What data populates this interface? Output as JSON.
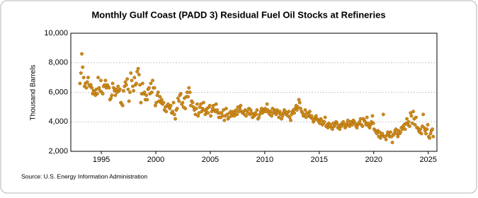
{
  "chart_data": {
    "type": "scatter",
    "title": "Monthly Gulf Coast (PADD 3) Residual Fuel Oil Stocks at Refineries",
    "ylabel": "Thousand Barrels",
    "source": "Source: U.S. Energy Information Administration",
    "color": "#d08b1a",
    "grid": true,
    "xlim": [
      1992.2,
      2025.8
    ],
    "xticks": [
      1995,
      2000,
      2005,
      2010,
      2015,
      2020,
      2025
    ],
    "ylim": [
      2000,
      10000
    ],
    "yticks": [
      {
        "value": 2000,
        "label": "2,000"
      },
      {
        "value": 4000,
        "label": "4,000"
      },
      {
        "value": 6000,
        "label": "6,000"
      },
      {
        "value": 8000,
        "label": "8,000"
      },
      {
        "value": 10000,
        "label": "10,000"
      }
    ],
    "x": [
      1993.04,
      1993.13,
      1993.21,
      1993.29,
      1993.38,
      1993.46,
      1993.54,
      1993.63,
      1993.71,
      1993.79,
      1993.88,
      1993.96,
      1994.04,
      1994.13,
      1994.21,
      1994.29,
      1994.38,
      1994.46,
      1994.54,
      1994.63,
      1994.71,
      1994.79,
      1994.88,
      1994.96,
      1995.04,
      1995.13,
      1995.21,
      1995.29,
      1995.38,
      1995.46,
      1995.54,
      1995.63,
      1995.71,
      1995.79,
      1995.88,
      1995.96,
      1996.04,
      1996.13,
      1996.21,
      1996.29,
      1996.38,
      1996.46,
      1996.54,
      1996.63,
      1996.71,
      1996.79,
      1996.88,
      1996.96,
      1997.04,
      1997.13,
      1997.21,
      1997.29,
      1997.38,
      1997.46,
      1997.54,
      1997.63,
      1997.71,
      1997.79,
      1997.88,
      1997.96,
      1998.04,
      1998.13,
      1998.21,
      1998.29,
      1998.38,
      1998.46,
      1998.54,
      1998.63,
      1998.71,
      1998.79,
      1998.88,
      1998.96,
      1999.04,
      1999.13,
      1999.21,
      1999.29,
      1999.38,
      1999.46,
      1999.54,
      1999.63,
      1999.71,
      1999.79,
      1999.88,
      1999.96,
      2000.04,
      2000.13,
      2000.21,
      2000.29,
      2000.38,
      2000.46,
      2000.54,
      2000.63,
      2000.71,
      2000.79,
      2000.88,
      2000.96,
      2001.04,
      2001.13,
      2001.21,
      2001.29,
      2001.38,
      2001.46,
      2001.54,
      2001.63,
      2001.71,
      2001.79,
      2001.88,
      2001.96,
      2002.04,
      2002.13,
      2002.21,
      2002.29,
      2002.38,
      2002.46,
      2002.54,
      2002.63,
      2002.71,
      2002.79,
      2002.88,
      2002.96,
      2003.04,
      2003.13,
      2003.21,
      2003.29,
      2003.38,
      2003.46,
      2003.54,
      2003.63,
      2003.71,
      2003.79,
      2003.88,
      2003.96,
      2004.04,
      2004.13,
      2004.21,
      2004.29,
      2004.38,
      2004.46,
      2004.54,
      2004.63,
      2004.71,
      2004.79,
      2004.88,
      2004.96,
      2005.04,
      2005.13,
      2005.21,
      2005.29,
      2005.38,
      2005.46,
      2005.54,
      2005.63,
      2005.71,
      2005.79,
      2005.88,
      2005.96,
      2006.04,
      2006.13,
      2006.21,
      2006.29,
      2006.38,
      2006.46,
      2006.54,
      2006.63,
      2006.71,
      2006.79,
      2006.88,
      2006.96,
      2007.04,
      2007.13,
      2007.21,
      2007.29,
      2007.38,
      2007.46,
      2007.54,
      2007.63,
      2007.71,
      2007.79,
      2007.88,
      2007.96,
      2008.04,
      2008.13,
      2008.21,
      2008.29,
      2008.38,
      2008.46,
      2008.54,
      2008.63,
      2008.71,
      2008.79,
      2008.88,
      2008.96,
      2009.04,
      2009.13,
      2009.21,
      2009.29,
      2009.38,
      2009.46,
      2009.54,
      2009.63,
      2009.71,
      2009.79,
      2009.88,
      2009.96,
      2010.04,
      2010.13,
      2010.21,
      2010.29,
      2010.38,
      2010.46,
      2010.54,
      2010.63,
      2010.71,
      2010.79,
      2010.88,
      2010.96,
      2011.04,
      2011.13,
      2011.21,
      2011.29,
      2011.38,
      2011.46,
      2011.54,
      2011.63,
      2011.71,
      2011.79,
      2011.88,
      2011.96,
      2012.04,
      2012.13,
      2012.21,
      2012.29,
      2012.38,
      2012.46,
      2012.54,
      2012.63,
      2012.71,
      2012.79,
      2012.88,
      2012.96,
      2013.04,
      2013.13,
      2013.21,
      2013.29,
      2013.38,
      2013.46,
      2013.54,
      2013.63,
      2013.71,
      2013.79,
      2013.88,
      2013.96,
      2014.04,
      2014.13,
      2014.21,
      2014.29,
      2014.38,
      2014.46,
      2014.54,
      2014.63,
      2014.71,
      2014.79,
      2014.88,
      2014.96,
      2015.04,
      2015.13,
      2015.21,
      2015.29,
      2015.38,
      2015.46,
      2015.54,
      2015.63,
      2015.71,
      2015.79,
      2015.88,
      2015.96,
      2016.04,
      2016.13,
      2016.21,
      2016.29,
      2016.38,
      2016.46,
      2016.54,
      2016.63,
      2016.71,
      2016.79,
      2016.88,
      2016.96,
      2017.04,
      2017.13,
      2017.21,
      2017.29,
      2017.38,
      2017.46,
      2017.54,
      2017.63,
      2017.71,
      2017.79,
      2017.88,
      2017.96,
      2018.04,
      2018.13,
      2018.21,
      2018.29,
      2018.38,
      2018.46,
      2018.54,
      2018.63,
      2018.71,
      2018.79,
      2018.88,
      2018.96,
      2019.04,
      2019.13,
      2019.21,
      2019.29,
      2019.38,
      2019.46,
      2019.54,
      2019.63,
      2019.71,
      2019.79,
      2019.88,
      2019.96,
      2020.04,
      2020.13,
      2020.21,
      2020.29,
      2020.38,
      2020.46,
      2020.54,
      2020.63,
      2020.71,
      2020.79,
      2020.88,
      2020.96,
      2021.04,
      2021.13,
      2021.21,
      2021.29,
      2021.38,
      2021.46,
      2021.54,
      2021.63,
      2021.71,
      2021.79,
      2021.88,
      2021.96,
      2022.04,
      2022.13,
      2022.21,
      2022.29,
      2022.38,
      2022.46,
      2022.54,
      2022.63,
      2022.71,
      2022.79,
      2022.88,
      2022.96,
      2023.04,
      2023.13,
      2023.21,
      2023.29,
      2023.38,
      2023.46,
      2023.54,
      2023.63,
      2023.71,
      2023.79,
      2023.88,
      2023.96,
      2024.04,
      2024.13,
      2024.21,
      2024.29,
      2024.38,
      2024.46,
      2024.54,
      2024.63,
      2024.71,
      2024.79,
      2024.88,
      2024.96,
      2025.04,
      2025.13,
      2025.21,
      2025.29,
      2025.38,
      2025.46
    ],
    "values": [
      6600,
      7300,
      8600,
      7700,
      7000,
      6400,
      6600,
      6300,
      6700,
      7000,
      6500,
      6400,
      6500,
      6300,
      5900,
      6100,
      6000,
      5800,
      6200,
      5900,
      7000,
      6300,
      6100,
      6800,
      6000,
      5900,
      6400,
      6500,
      6800,
      6300,
      6500,
      6400,
      6300,
      5500,
      5600,
      5800,
      6600,
      6300,
      6100,
      5800,
      6200,
      6000,
      6400,
      6100,
      6200,
      5300,
      5200,
      5100,
      6100,
      6400,
      6700,
      6500,
      6900,
      6200,
      5400,
      6000,
      7300,
      6800,
      6400,
      6100,
      7000,
      6500,
      6600,
      7400,
      7600,
      7200,
      6500,
      5300,
      5900,
      6600,
      5900,
      6000,
      5500,
      5800,
      5500,
      6200,
      6300,
      5900,
      6600,
      6000,
      6800,
      6300,
      6300,
      5100,
      5300,
      5800,
      6000,
      5400,
      5700,
      5300,
      5500,
      5200,
      5300,
      4800,
      5000,
      4700,
      5100,
      5200,
      5000,
      4900,
      5100,
      4600,
      4700,
      5300,
      4500,
      4200,
      4800,
      4900,
      5600,
      5400,
      5800,
      5900,
      5200,
      5300,
      5000,
      5600,
      4900,
      5700,
      6000,
      5700,
      6300,
      6000,
      5100,
      5400,
      5300,
      5000,
      4800,
      4500,
      4900,
      5200,
      4400,
      4600,
      5000,
      5200,
      4700,
      4900,
      5300,
      4800,
      4500,
      4700,
      4900,
      4600,
      5000,
      5100,
      4400,
      4700,
      4900,
      5100,
      4800,
      4700,
      5200,
      4800,
      4600,
      4300,
      4600,
      4300,
      4600,
      4400,
      4800,
      4100,
      4400,
      4900,
      4500,
      4200,
      4300,
      4600,
      4700,
      4400,
      4500,
      4700,
      4400,
      4600,
      4800,
      4500,
      5000,
      4700,
      4900,
      5100,
      4700,
      4600,
      4700,
      4500,
      4800,
      4400,
      4700,
      4600,
      4900,
      4500,
      4800,
      4600,
      4300,
      4500,
      4400,
      4600,
      4500,
      4800,
      4200,
      4300,
      4500,
      4700,
      4900,
      4600,
      4800,
      4700,
      4900,
      4700,
      5200,
      4800,
      4600,
      4500,
      4700,
      4400,
      4900,
      4600,
      4800,
      4700,
      4500,
      4800,
      4600,
      4300,
      4700,
      4500,
      4200,
      4400,
      4600,
      4800,
      4700,
      4500,
      4600,
      4400,
      4700,
      4300,
      4100,
      4500,
      4700,
      4800,
      4600,
      4900,
      5100,
      4800,
      5000,
      5500,
      5300,
      4900,
      4700,
      4600,
      4400,
      4500,
      4800,
      4300,
      4600,
      4400,
      4500,
      4700,
      4300,
      4400,
      4200,
      4000,
      4100,
      4300,
      4400,
      4200,
      4100,
      4000,
      3900,
      4200,
      4100,
      3800,
      3900,
      4000,
      4300,
      3700,
      3800,
      3600,
      3900,
      3700,
      3800,
      3600,
      3500,
      3900,
      3700,
      3800,
      4000,
      3900,
      3600,
      3700,
      3500,
      3800,
      3700,
      3900,
      4000,
      3800,
      3600,
      3700,
      3900,
      4100,
      3800,
      3700,
      4000,
      3900,
      3800,
      4100,
      4000,
      3900,
      3700,
      3600,
      3800,
      3900,
      4000,
      4200,
      3800,
      3700,
      4200,
      4100,
      4000,
      3800,
      4300,
      3900,
      3700,
      3600,
      3800,
      4000,
      4400,
      3900,
      3500,
      3400,
      3300,
      3200,
      3400,
      3000,
      3300,
      2900,
      3100,
      3200,
      4500,
      3000,
      3000,
      2800,
      3100,
      3300,
      3200,
      3000,
      3300,
      3000,
      2600,
      3100,
      3200,
      3400,
      3500,
      3200,
      3000,
      3400,
      3200,
      3300,
      3600,
      3500,
      3700,
      3800,
      3500,
      3900,
      4200,
      3800,
      4000,
      3700,
      4600,
      4400,
      3900,
      4700,
      4200,
      3800,
      4300,
      3600,
      3600,
      3400,
      3300,
      3500,
      3200,
      3700,
      4500,
      3600,
      3400,
      3200,
      3500,
      3800,
      3000,
      2900,
      3200,
      3400,
      3500,
      3000
    ]
  }
}
